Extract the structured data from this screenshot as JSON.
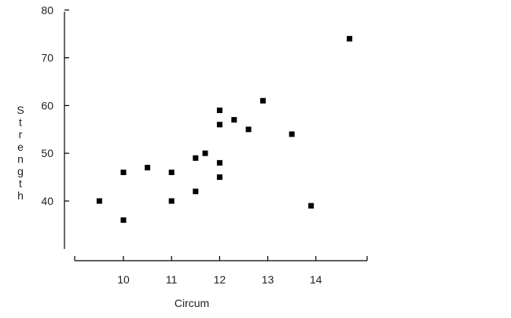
{
  "chart_data": {
    "type": "scatter",
    "title": "",
    "xlabel": "Circum",
    "ylabel": "Strength",
    "xlim": [
      9,
      14.8
    ],
    "ylim": [
      30,
      80
    ],
    "x_ticks": [
      10,
      11,
      12,
      13,
      14
    ],
    "y_ticks": [
      40,
      50,
      60,
      70,
      80
    ],
    "grid": false,
    "marker": "square",
    "colors": {
      "marker": "#000000",
      "axis": "#000000",
      "text": "#222222"
    },
    "points": [
      {
        "x": 9.5,
        "y": 40
      },
      {
        "x": 10.0,
        "y": 46
      },
      {
        "x": 10.0,
        "y": 36
      },
      {
        "x": 10.5,
        "y": 47
      },
      {
        "x": 11.0,
        "y": 46
      },
      {
        "x": 11.0,
        "y": 40
      },
      {
        "x": 11.5,
        "y": 49
      },
      {
        "x": 11.5,
        "y": 42
      },
      {
        "x": 11.7,
        "y": 50
      },
      {
        "x": 12.0,
        "y": 59
      },
      {
        "x": 12.0,
        "y": 56
      },
      {
        "x": 12.0,
        "y": 48
      },
      {
        "x": 12.0,
        "y": 45
      },
      {
        "x": 12.3,
        "y": 57
      },
      {
        "x": 12.6,
        "y": 55
      },
      {
        "x": 12.9,
        "y": 61
      },
      {
        "x": 13.5,
        "y": 54
      },
      {
        "x": 13.9,
        "y": 39
      },
      {
        "x": 14.7,
        "y": 74
      }
    ]
  }
}
